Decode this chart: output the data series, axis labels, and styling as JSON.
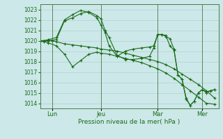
{
  "xlabel": "Pression niveau de la mer( hPa )",
  "bg_color": "#cce8e8",
  "grid_color": "#aacccc",
  "line_color": "#1a6b1a",
  "spine_color": "#4a7a4a",
  "ylim": [
    1013.5,
    1023.5
  ],
  "yticks": [
    1014,
    1015,
    1016,
    1017,
    1018,
    1019,
    1020,
    1021,
    1022,
    1023
  ],
  "xlim": [
    0,
    22
  ],
  "day_positions": [
    1.5,
    7.5,
    14.5,
    20.0
  ],
  "day_labels": [
    "Lun",
    "Jeu",
    "Mar",
    "Mer"
  ],
  "vline_positions": [
    1.5,
    7.5,
    14.5,
    20.0
  ],
  "s1_x": [
    0,
    0.5,
    1.0,
    1.5,
    2.0,
    3.0,
    4.0,
    5.0,
    6.0,
    7.0,
    7.5,
    8.5,
    9.5,
    10.5,
    11.5,
    12.5,
    13.5,
    14.5,
    15.5,
    16.5,
    17.5,
    18.5,
    19.5,
    20.5,
    21.5
  ],
  "s1_y": [
    1020.0,
    1020.0,
    1020.0,
    1020.0,
    1019.9,
    1019.7,
    1019.6,
    1019.5,
    1019.4,
    1019.3,
    1019.2,
    1019.1,
    1019.0,
    1018.8,
    1018.6,
    1018.4,
    1018.2,
    1018.0,
    1017.7,
    1017.3,
    1016.8,
    1016.3,
    1015.8,
    1015.2,
    1014.5
  ],
  "s2_x": [
    0,
    0.5,
    1.0,
    2.0,
    3.0,
    4.0,
    5.0,
    6.0,
    7.0,
    7.5,
    8.5,
    9.5,
    10.5,
    11.5,
    12.5,
    13.5,
    14.5,
    15.5,
    16.5,
    17.5,
    18.5,
    19.5,
    20.5,
    21.5
  ],
  "s2_y": [
    1020.0,
    1019.9,
    1019.8,
    1019.5,
    1018.7,
    1017.5,
    1018.1,
    1018.7,
    1018.9,
    1018.8,
    1018.7,
    1018.5,
    1018.3,
    1018.1,
    1017.9,
    1017.6,
    1017.3,
    1016.9,
    1016.4,
    1015.8,
    1015.2,
    1014.6,
    1014.0,
    1013.9
  ],
  "s3_x": [
    0,
    0.5,
    1.0,
    2.0,
    3.0,
    4.0,
    5.0,
    6.0,
    7.0,
    7.5,
    8.0,
    8.5,
    9.5,
    10.5,
    11.5,
    12.5,
    13.5,
    14.0,
    14.5,
    15.0,
    15.5,
    16.0,
    16.5,
    17.0,
    17.5,
    18.0,
    18.5,
    19.0,
    19.5,
    20.0,
    20.5,
    21.0,
    21.5
  ],
  "s3_y": [
    1020.0,
    1020.0,
    1020.1,
    1020.3,
    1022.0,
    1022.5,
    1022.9,
    1022.7,
    1022.2,
    1021.5,
    1020.8,
    1019.5,
    1018.5,
    1019.0,
    1019.2,
    1019.3,
    1019.4,
    1019.5,
    1020.6,
    1020.6,
    1020.5,
    1019.5,
    1019.1,
    1016.7,
    1016.3,
    1014.4,
    1013.8,
    1014.2,
    1015.0,
    1015.3,
    1015.0,
    1015.2,
    1015.3
  ],
  "s4_x": [
    0,
    0.5,
    1.0,
    2.0,
    3.0,
    4.0,
    5.0,
    6.0,
    7.0,
    7.5,
    8.0,
    8.5,
    9.5,
    10.5,
    11.5,
    12.5,
    13.5,
    14.0,
    14.5,
    15.0,
    15.5,
    16.0,
    16.5,
    17.0,
    17.5,
    18.0,
    18.5,
    19.0,
    19.5,
    20.0,
    20.5,
    21.0,
    21.5
  ],
  "s4_y": [
    1020.0,
    1020.0,
    1020.0,
    1020.1,
    1021.9,
    1022.2,
    1022.6,
    1022.8,
    1022.4,
    1022.1,
    1021.0,
    1020.3,
    1018.6,
    1018.2,
    1018.2,
    1018.3,
    1018.5,
    1019.3,
    1020.6,
    1020.6,
    1020.4,
    1020.2,
    1019.2,
    1016.7,
    1016.3,
    1014.5,
    1013.8,
    1014.2,
    1015.0,
    1015.3,
    1015.1,
    1015.2,
    1015.3
  ],
  "figsize": [
    3.2,
    2.0
  ],
  "dpi": 100
}
